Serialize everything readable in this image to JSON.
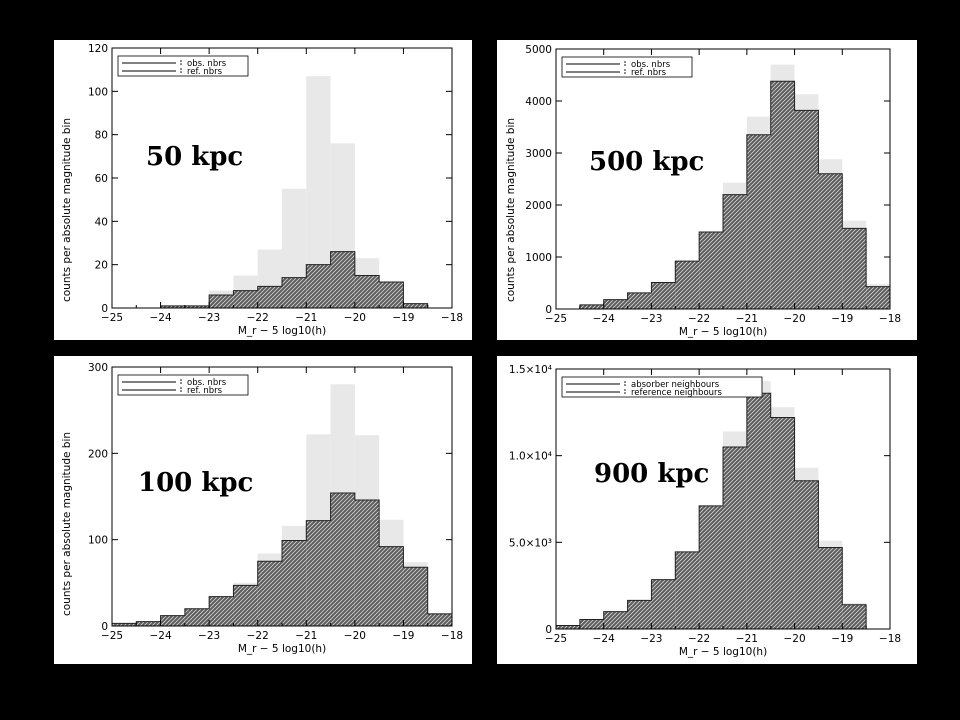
{
  "chart_data": [
    {
      "type": "bar",
      "label": "50 kpc",
      "xlabel": "M_r − 5 log10(h)",
      "ylabel": "counts per absolute magnitude bin",
      "xlim": [
        -25,
        -18
      ],
      "ylim": [
        0,
        120
      ],
      "xticks": [
        "−25",
        "−24",
        "−23",
        "−22",
        "−21",
        "−20",
        "−19",
        "−18"
      ],
      "yticks": [
        "0",
        "20",
        "40",
        "60",
        "80",
        "100",
        "120"
      ],
      "bin_edges": [
        -25.0,
        -24.5,
        -24.0,
        -23.5,
        -23.0,
        -22.5,
        -22.0,
        -21.5,
        -21.0,
        -20.5,
        -20.0,
        -19.5,
        -19.0,
        -18.5,
        -18.0
      ],
      "legend": [
        "obs. nbrs",
        "ref. nbrs"
      ],
      "series": [
        {
          "name": "obs. nbrs",
          "style": "hatched",
          "values": [
            0,
            0,
            1,
            1,
            6,
            8,
            10,
            14,
            20,
            26,
            15,
            12,
            2,
            0
          ]
        },
        {
          "name": "ref. nbrs",
          "style": "filled-light",
          "values": [
            0,
            0,
            1,
            1,
            8,
            15,
            27,
            55,
            107,
            76,
            23,
            12,
            2,
            0
          ]
        }
      ]
    },
    {
      "type": "bar",
      "label": "500 kpc",
      "xlabel": "M_r − 5 log10(h)",
      "ylabel": "counts per absolute magnitude bin",
      "xlim": [
        -25,
        -18
      ],
      "ylim": [
        0,
        5000
      ],
      "xticks": [
        "−25",
        "−24",
        "−23",
        "−22",
        "−21",
        "−20",
        "−19",
        "−18"
      ],
      "yticks": [
        "0",
        "1000",
        "2000",
        "3000",
        "4000",
        "5000"
      ],
      "bin_edges": [
        -25.0,
        -24.5,
        -24.0,
        -23.5,
        -23.0,
        -22.5,
        -22.0,
        -21.5,
        -21.0,
        -20.5,
        -20.0,
        -19.5,
        -19.0,
        -18.5,
        -18.0
      ],
      "legend": [
        "obs. nbrs",
        "ref. nbrs"
      ],
      "series": [
        {
          "name": "obs. nbrs",
          "style": "hatched",
          "values": [
            0,
            80,
            180,
            310,
            510,
            920,
            1480,
            2200,
            3350,
            4380,
            3820,
            2600,
            1550,
            430
          ]
        },
        {
          "name": "ref. nbrs",
          "style": "filled-light",
          "values": [
            0,
            80,
            180,
            310,
            510,
            920,
            1480,
            2430,
            3700,
            4700,
            4130,
            2880,
            1700,
            480
          ]
        }
      ]
    },
    {
      "type": "bar",
      "label": "100 kpc",
      "xlabel": "M_r − 5 log10(h)",
      "ylabel": "counts per absolute magnitude bin",
      "xlim": [
        -25,
        -18
      ],
      "ylim": [
        0,
        300
      ],
      "xticks": [
        "−25",
        "−24",
        "−23",
        "−22",
        "−21",
        "−20",
        "−19",
        "−18"
      ],
      "yticks": [
        "0",
        "100",
        "200",
        "300"
      ],
      "bin_edges": [
        -25.0,
        -24.5,
        -24.0,
        -23.5,
        -23.0,
        -22.5,
        -22.0,
        -21.5,
        -21.0,
        -20.5,
        -20.0,
        -19.5,
        -19.0,
        -18.5,
        -18.0
      ],
      "legend": [
        "obs. nbrs",
        "ref. nbrs"
      ],
      "series": [
        {
          "name": "obs. nbrs",
          "style": "hatched",
          "values": [
            3,
            5,
            12,
            20,
            34,
            47,
            75,
            99,
            122,
            154,
            146,
            92,
            68,
            14
          ]
        },
        {
          "name": "ref. nbrs",
          "style": "filled-light",
          "values": [
            3,
            5,
            12,
            20,
            34,
            50,
            84,
            116,
            222,
            280,
            221,
            123,
            74,
            15
          ]
        }
      ]
    },
    {
      "type": "bar",
      "label": "900 kpc",
      "xlabel": "M_r − 5 log10(h)",
      "ylabel": "",
      "xlim": [
        -25,
        -18
      ],
      "ylim": [
        0,
        15000
      ],
      "xticks": [
        "−25",
        "−24",
        "−23",
        "−22",
        "−21",
        "−20",
        "−19",
        "−18"
      ],
      "yticks": [
        "0",
        "5.0×10³",
        "1.0×10⁴",
        "1.5×10⁴"
      ],
      "bin_edges": [
        -25.0,
        -24.5,
        -24.0,
        -23.5,
        -23.0,
        -22.5,
        -22.0,
        -21.5,
        -21.0,
        -20.5,
        -20.0,
        -19.5,
        -19.0,
        -18.5,
        -18.0
      ],
      "legend": [
        "absorber neighbours",
        "reference neighbours"
      ],
      "series": [
        {
          "name": "absorber neighbours",
          "style": "hatched",
          "values": [
            200,
            550,
            1000,
            1650,
            2850,
            4450,
            7100,
            10500,
            13600,
            12200,
            8550,
            4700,
            1400,
            0
          ]
        },
        {
          "name": "reference neighbours",
          "style": "filled-light",
          "values": [
            200,
            550,
            1000,
            1650,
            2850,
            4450,
            7100,
            11400,
            14300,
            12800,
            9300,
            5100,
            1500,
            0
          ]
        }
      ]
    }
  ]
}
